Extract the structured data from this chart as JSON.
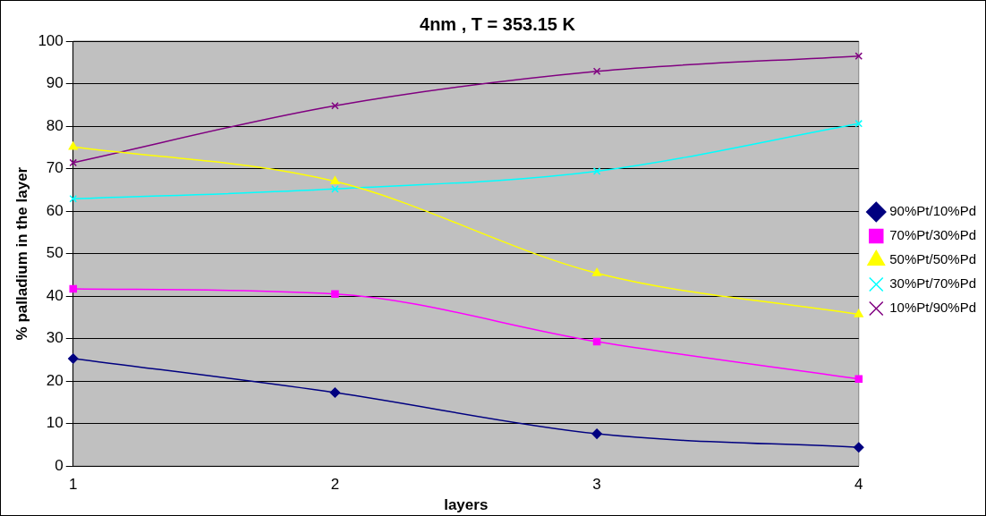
{
  "chart_data": {
    "type": "line",
    "title": "4nm , T = 353.15 K",
    "xlabel": "layers",
    "ylabel": "% palladium in the layer",
    "categories": [
      "1",
      "2",
      "3",
      "4"
    ],
    "series": [
      {
        "name": "90%Pt/10%Pd",
        "color": "#000080",
        "marker": "diamond",
        "values": [
          25.3,
          17.3,
          7.6,
          4.4
        ]
      },
      {
        "name": "70%Pt/30%Pd",
        "color": "#ff00ff",
        "marker": "square",
        "values": [
          41.7,
          40.5,
          29.3,
          20.5
        ]
      },
      {
        "name": "50%Pt/50%Pd",
        "color": "#ffff00",
        "marker": "triangle",
        "values": [
          75.1,
          67,
          45.4,
          35.7
        ]
      },
      {
        "name": "30%Pt/70%Pd",
        "color": "#00ffff",
        "marker": "cross",
        "values": [
          62.9,
          65.2,
          69.4,
          80.6
        ]
      },
      {
        "name": "10%Pt/90%Pd",
        "color": "#800080",
        "marker": "cross",
        "values": [
          71.4,
          84.8,
          92.9,
          96.5
        ]
      }
    ],
    "ylim": [
      0,
      100
    ],
    "yticks": [
      0,
      10,
      20,
      30,
      40,
      50,
      60,
      70,
      80,
      90,
      100
    ],
    "grid": "y",
    "legend": "right",
    "line_style": "solid"
  }
}
